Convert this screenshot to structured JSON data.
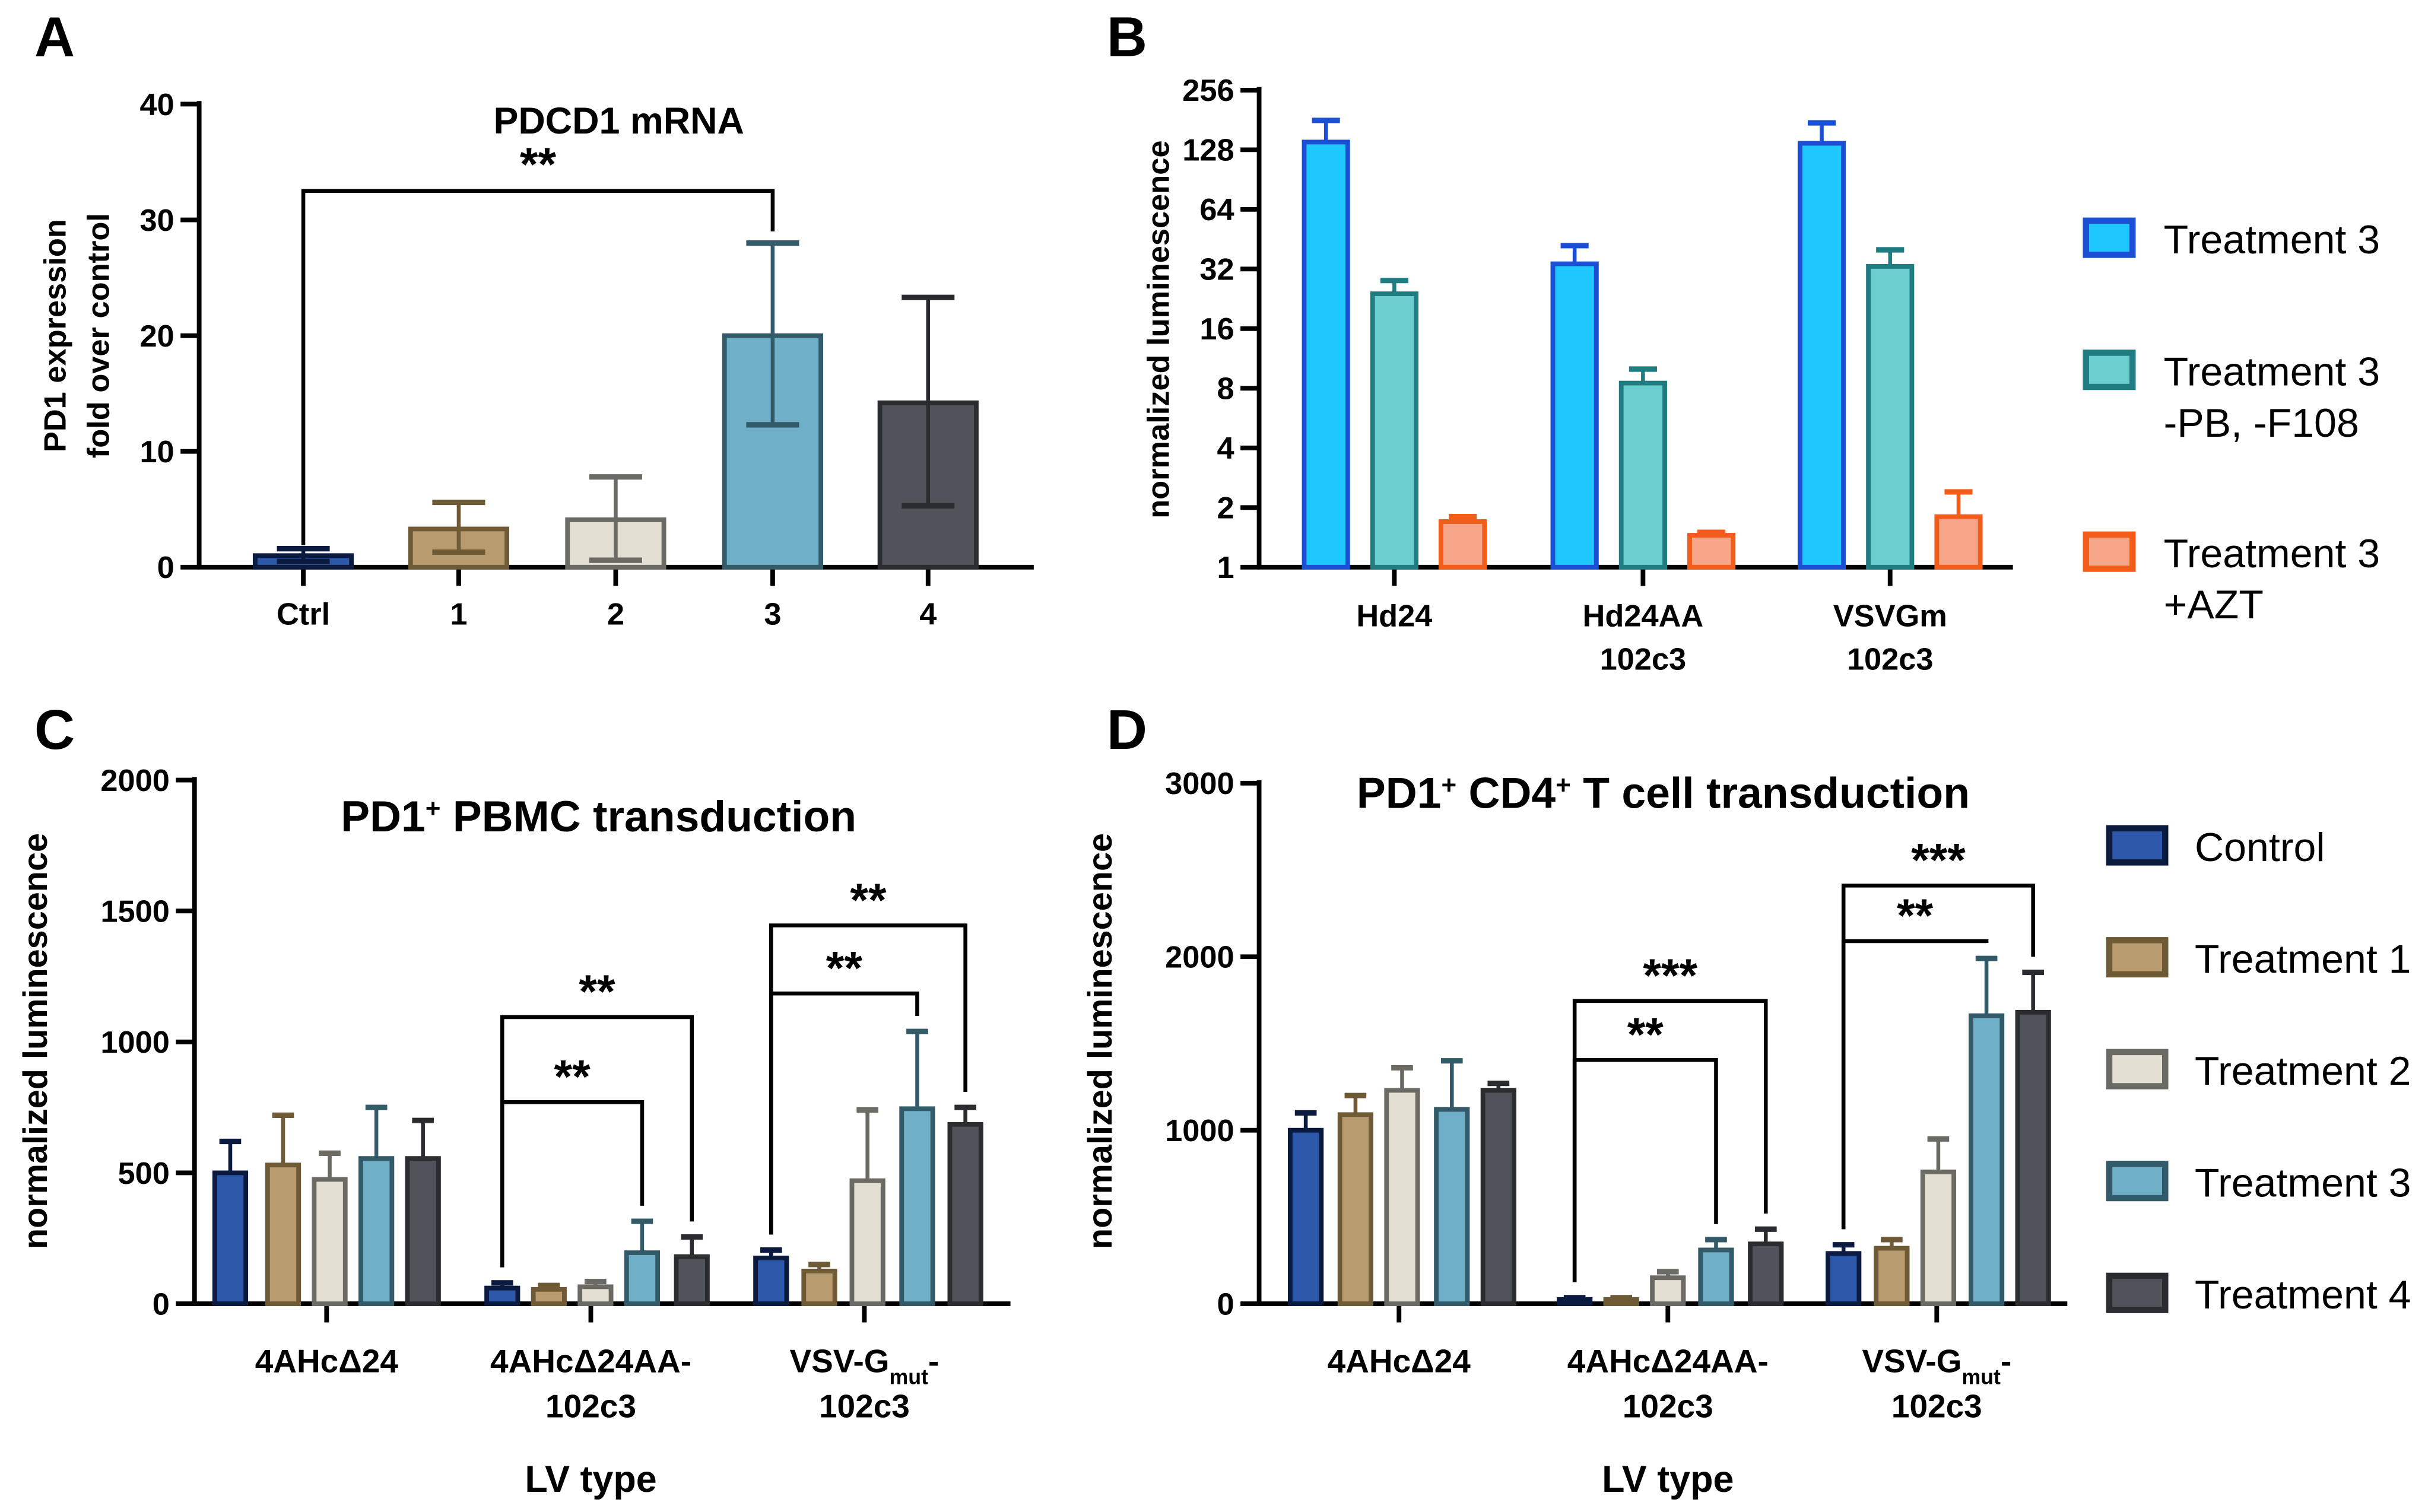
{
  "chart_data": [
    {
      "panel": "A",
      "type": "bar",
      "title": "PDCD1 mRNA",
      "ylabel": [
        "PD1 expression",
        "fold over control"
      ],
      "xlabel": "",
      "ylim": [
        0,
        40
      ],
      "yticks": [
        0,
        10,
        20,
        30,
        40
      ],
      "categories": [
        "Ctrl",
        "1",
        "2",
        "3",
        "4"
      ],
      "values": [
        1.0,
        3.3,
        4.1,
        20.0,
        14.2
      ],
      "err_low": [
        0.5,
        1.3,
        0.6,
        12.3,
        5.3
      ],
      "err_high": [
        1.6,
        5.6,
        7.8,
        28.0,
        23.3
      ],
      "fills": [
        "#2d57a8",
        "#b89c70",
        "#e3dfd3",
        "#6fafc8",
        "#50545a"
      ],
      "strokes": [
        "#0b1a3f",
        "#6e5a35",
        "#6b6a64",
        "#335a68",
        "#2a2c2f"
      ],
      "significance": [
        {
          "from": 0,
          "to": 3,
          "label": "**",
          "y": 32.5
        }
      ]
    },
    {
      "panel": "B",
      "type": "bar",
      "yscale": "log2",
      "ylabel": "normalized luminescence",
      "xlabel": "",
      "ylim": [
        1,
        256
      ],
      "yticks": [
        1,
        2,
        4,
        8,
        16,
        32,
        64,
        128,
        256
      ],
      "categories": [
        [
          "Hd24"
        ],
        [
          "Hd24AA",
          "102c3"
        ],
        [
          "VSVGm",
          "102c3"
        ]
      ],
      "series": [
        {
          "name": [
            "Treatment 3"
          ],
          "fill": "#1ec8ff",
          "stroke": "#1a4fd6",
          "values": [
            140,
            34,
            138
          ],
          "err_high": [
            180,
            42,
            175
          ]
        },
        {
          "name": [
            "Treatment 3",
            "-PB, -F108"
          ],
          "fill": "#6ccfcf",
          "stroke": "#1f7c80",
          "values": [
            24,
            8.5,
            33
          ],
          "err_high": [
            28,
            10,
            40
          ]
        },
        {
          "name": [
            "Treatment 3",
            "+AZT"
          ],
          "fill": "#f7a588",
          "stroke": "#f25d1c",
          "values": [
            1.7,
            1.45,
            1.8
          ],
          "err_high": [
            1.8,
            1.5,
            2.4
          ]
        }
      ],
      "legend": "right"
    },
    {
      "panel": "C",
      "type": "bar",
      "title": [
        "PD1",
        "+",
        " PBMC transduction"
      ],
      "ylabel": "normalized luminescence",
      "xlabel": "LV type",
      "ylim": [
        0,
        2000
      ],
      "yticks": [
        0,
        500,
        1000,
        1500,
        2000
      ],
      "categories": [
        [
          "4AHcΔ24"
        ],
        [
          "4AHcΔ24AA-",
          "102c3"
        ],
        [
          "VSV-G|mut|-",
          "102c3"
        ]
      ],
      "series": [
        {
          "name": "Control",
          "values": [
            500,
            60,
            175
          ],
          "err_high": [
            620,
            80,
            205
          ]
        },
        {
          "name": "Treatment 1",
          "values": [
            530,
            55,
            125
          ],
          "err_high": [
            720,
            70,
            150
          ]
        },
        {
          "name": "Treatment 2",
          "values": [
            475,
            65,
            470
          ],
          "err_high": [
            575,
            85,
            740
          ]
        },
        {
          "name": "Treatment 3",
          "values": [
            555,
            195,
            745
          ],
          "err_high": [
            750,
            315,
            1040
          ]
        },
        {
          "name": "Treatment 4",
          "values": [
            555,
            180,
            685
          ],
          "err_high": [
            700,
            255,
            750
          ]
        }
      ],
      "significance": [
        {
          "group": 1,
          "from": 0,
          "to": 3,
          "label": "**",
          "y": 770
        },
        {
          "group": 1,
          "from": 0,
          "to": 4,
          "label": "**",
          "y": 1095
        },
        {
          "group": 2,
          "from": 0,
          "to": 3,
          "label": "**",
          "y": 1185
        },
        {
          "group": 2,
          "from": 0,
          "to": 4,
          "label": "**",
          "y": 1445
        }
      ]
    },
    {
      "panel": "D",
      "type": "bar",
      "title": [
        "PD1",
        "+",
        " CD4",
        "+",
        " T cell transduction"
      ],
      "ylabel": "normalized luminescence",
      "xlabel": "LV type",
      "ylim": [
        0,
        3000
      ],
      "yticks": [
        0,
        1000,
        2000,
        3000
      ],
      "categories": [
        [
          "4AHcΔ24"
        ],
        [
          "4AHcΔ24AA-",
          "102c3"
        ],
        [
          "VSV-G|mut|-",
          "102c3"
        ]
      ],
      "series": [
        {
          "name": "Control",
          "values": [
            1000,
            25,
            290
          ],
          "err_high": [
            1100,
            35,
            340
          ]
        },
        {
          "name": "Treatment 1",
          "values": [
            1090,
            25,
            320
          ],
          "err_high": [
            1200,
            35,
            370
          ]
        },
        {
          "name": "Treatment 2",
          "values": [
            1230,
            150,
            760
          ],
          "err_high": [
            1360,
            185,
            950
          ]
        },
        {
          "name": "Treatment 3",
          "values": [
            1120,
            310,
            1660
          ],
          "err_high": [
            1400,
            370,
            1990
          ]
        },
        {
          "name": "Treatment 4",
          "values": [
            1230,
            345,
            1680
          ],
          "err_high": [
            1270,
            430,
            1910
          ]
        }
      ],
      "significance": [
        {
          "group": 1,
          "from": 0,
          "to": 3,
          "label": "**",
          "y": 1405
        },
        {
          "group": 1,
          "from": 0,
          "to": 4,
          "label": "***",
          "y": 1745
        },
        {
          "group": 2,
          "from": 0,
          "to": 3,
          "label": "**",
          "y": 2090
        },
        {
          "group": 2,
          "from": 0,
          "to": 4,
          "label": "***",
          "y": 2410
        }
      ],
      "legend": "right"
    }
  ],
  "series_colors": {
    "fills": [
      "#2d57a8",
      "#b89c70",
      "#e3dfd3",
      "#6fafc8",
      "#50545a"
    ],
    "strokes": [
      "#0b1a3f",
      "#6e5a35",
      "#6b6a64",
      "#335a68",
      "#2a2c2f"
    ]
  },
  "panel_labels": [
    "A",
    "B",
    "C",
    "D"
  ]
}
